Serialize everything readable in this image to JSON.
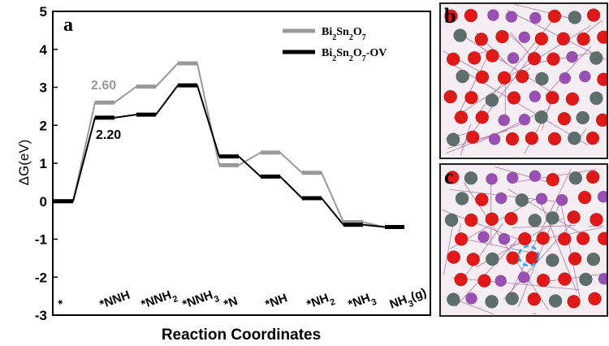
{
  "chart_data": {
    "type": "line",
    "panel_label": "a",
    "ylabel": "ΔG(eV)",
    "xlabel": "Reaction Coordinates",
    "ylim": [
      -3,
      5
    ],
    "yticks": [
      "-3",
      "-2",
      "-1",
      "0",
      "1",
      "2",
      "3",
      "4",
      "5"
    ],
    "categories": [
      "*",
      "*NNH",
      "*NNH2",
      "*NNH3",
      "*N",
      "*NH",
      "*NH2",
      "*NH3",
      "NH3(g)"
    ],
    "series": [
      {
        "name": "Bi2Sn2O7",
        "color": "#999999",
        "values": [
          0,
          2.6,
          3.02,
          3.63,
          0.95,
          1.28,
          0.75,
          -0.55,
          -0.68
        ]
      },
      {
        "name": "Bi2Sn2O7-OV",
        "color": "#000000",
        "values": [
          0,
          2.2,
          2.28,
          3.05,
          1.18,
          0.65,
          0.08,
          -0.62,
          -0.68
        ]
      }
    ],
    "annotations": [
      {
        "text": "2.60",
        "color": "#999999"
      },
      {
        "text": "2.20",
        "color": "#000000"
      }
    ],
    "legend_position": "top-right"
  },
  "panels": {
    "b": {
      "label": "b"
    },
    "c": {
      "label": "c"
    }
  }
}
